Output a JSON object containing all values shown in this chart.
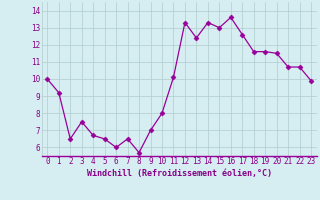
{
  "x": [
    0,
    1,
    2,
    3,
    4,
    5,
    6,
    7,
    8,
    9,
    10,
    11,
    12,
    13,
    14,
    15,
    16,
    17,
    18,
    19,
    20,
    21,
    22,
    23
  ],
  "y": [
    10.0,
    9.2,
    6.5,
    7.5,
    6.7,
    6.5,
    6.0,
    6.5,
    5.7,
    7.0,
    8.0,
    10.1,
    13.3,
    12.4,
    13.3,
    13.0,
    13.6,
    12.6,
    11.6,
    11.6,
    11.5,
    10.7,
    10.7,
    9.9
  ],
  "line_color": "#990099",
  "marker": "D",
  "marker_size": 2.5,
  "bg_color": "#d6eef2",
  "grid_color": "#b0cccc",
  "xlabel": "Windchill (Refroidissement éolien,°C)",
  "xlabel_color": "#880088",
  "tick_color": "#880088",
  "ylim": [
    5.5,
    14.5
  ],
  "xlim": [
    -0.5,
    23.5
  ],
  "yticks": [
    6,
    7,
    8,
    9,
    10,
    11,
    12,
    13,
    14
  ],
  "xticks": [
    0,
    1,
    2,
    3,
    4,
    5,
    6,
    7,
    8,
    9,
    10,
    11,
    12,
    13,
    14,
    15,
    16,
    17,
    18,
    19,
    20,
    21,
    22,
    23
  ],
  "tick_fontsize": 5.5,
  "xlabel_fontsize": 6.0
}
